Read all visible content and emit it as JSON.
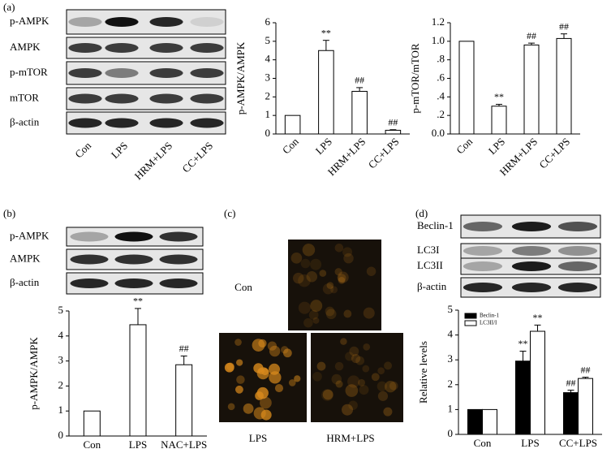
{
  "panels": [
    "(a)",
    "(b)",
    "(c)",
    "(d)"
  ],
  "blots": [
    {
      "rows": [
        "p-AMPK",
        "AMPK",
        "p-mTOR",
        "mTOR",
        "β-actin"
      ],
      "lanes": [
        "Con",
        "LPS",
        "HRM+LPS",
        "CC+LPS"
      ]
    },
    {
      "rows": [
        "p-AMPK",
        "AMPK",
        "β-actin"
      ]
    },
    {
      "rows": [
        "Beclin-1",
        "LC3I",
        "LC3II",
        "β-actin"
      ]
    }
  ],
  "images": {
    "labels": [
      "Con",
      "LPS",
      "HRM+LPS"
    ]
  },
  "chart_data": [
    {
      "type": "bar",
      "ylabel": "p-AMPK/AMPK",
      "categories": [
        "Con",
        "LPS",
        "HRM+LPS",
        "CC+LPS"
      ],
      "series": [
        {
          "color": "#ffffff",
          "values": [
            1,
            4.5,
            2.3,
            0.2
          ],
          "errors": [
            0,
            0.55,
            0.2,
            0.03
          ],
          "annotations": [
            null,
            "**",
            "##",
            "##"
          ]
        }
      ],
      "ylim": [
        0,
        6
      ],
      "yticks": [
        0,
        1,
        2,
        3,
        4,
        5,
        6
      ]
    },
    {
      "type": "bar",
      "ylabel": "p-mTOR/mTOR",
      "categories": [
        "Con",
        "LPS",
        "HRM+LPS",
        "CC+LPS"
      ],
      "series": [
        {
          "color": "#ffffff",
          "values": [
            1,
            0.3,
            0.96,
            1.03
          ],
          "errors": [
            0,
            0.02,
            0.02,
            0.05
          ],
          "annotations": [
            null,
            "**",
            "##",
            "##"
          ]
        }
      ],
      "ylim": [
        0,
        1.2
      ],
      "yticks": [
        {
          "value": 0,
          "label": "0.0"
        },
        {
          "value": 0.2,
          "label": ".2"
        },
        {
          "value": 0.4,
          "label": ".4"
        },
        {
          "value": 0.6,
          "label": ".6"
        },
        {
          "value": 0.8,
          "label": ".8"
        },
        {
          "value": 1,
          "label": "1.0"
        },
        {
          "value": 1.2,
          "label": "1.2"
        }
      ]
    },
    {
      "type": "bar",
      "ylabel": "p-AMPK/AMPK",
      "categories": [
        "Con",
        "LPS",
        "NAC+LPS"
      ],
      "series": [
        {
          "color": "#ffffff",
          "values": [
            1,
            4.45,
            2.85
          ],
          "errors": [
            0,
            0.65,
            0.35
          ],
          "annotations": [
            null,
            "**",
            "##"
          ]
        }
      ],
      "ylim": [
        0,
        5
      ],
      "yticks": [
        0,
        1,
        2,
        3,
        4,
        5
      ]
    },
    {
      "type": "bar",
      "ylabel": "Relative levels",
      "categories": [
        "Con",
        "LPS",
        "CC+LPS"
      ],
      "series": [
        {
          "name": "Beclin-1",
          "color": "#000000",
          "values": [
            1,
            2.95,
            1.68
          ],
          "errors": [
            0,
            0.4,
            0.1
          ],
          "annotations": [
            null,
            "**",
            "##"
          ]
        },
        {
          "name": "LC3II/I",
          "color": "#ffffff",
          "values": [
            1,
            4.15,
            2.25
          ],
          "errors": [
            0,
            0.25,
            0.05
          ],
          "annotations": [
            null,
            "**",
            "##"
          ]
        }
      ],
      "ylim": [
        0,
        5
      ],
      "yticks": [
        0,
        1,
        2,
        3,
        4,
        5
      ],
      "legend": "upper left"
    }
  ]
}
